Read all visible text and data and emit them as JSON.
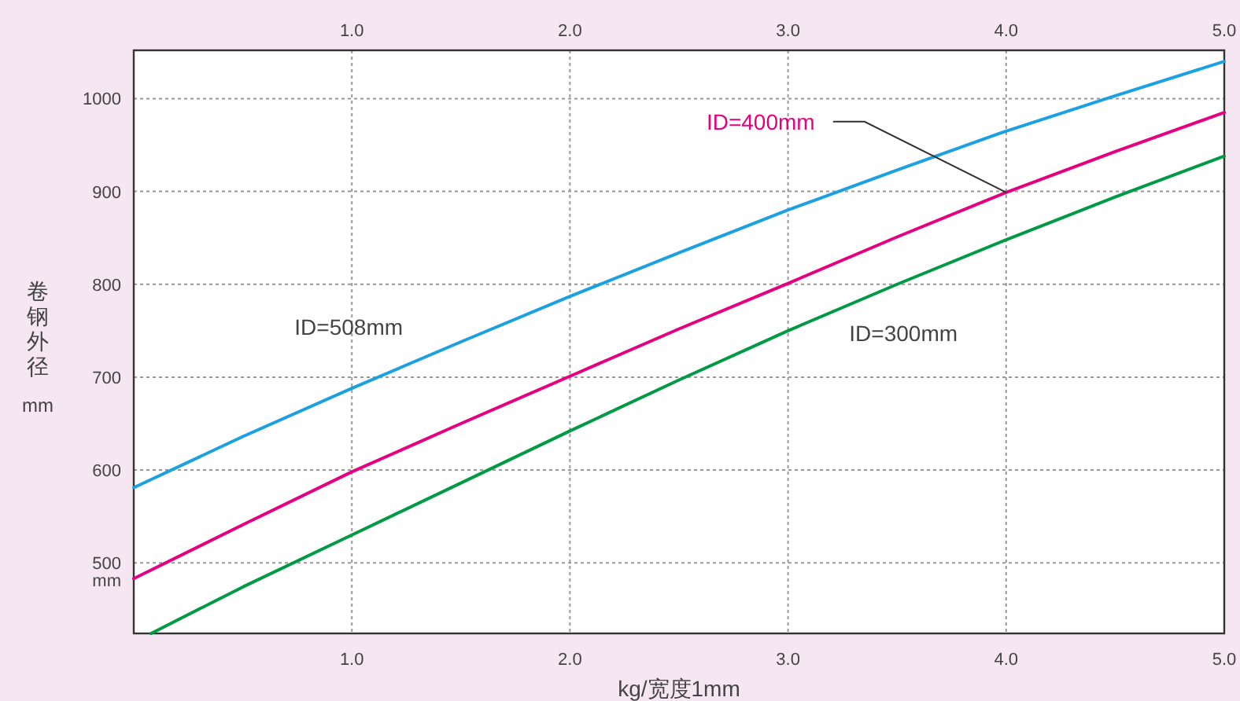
{
  "chart_data": {
    "type": "line",
    "xlabel": "kg/宽度1mm",
    "ylabel": "卷钢外径 mm",
    "x": [
      0,
      0.5,
      1,
      1.5,
      2,
      2.5,
      3,
      3.5,
      4,
      4.5,
      5
    ],
    "xlim": [
      0,
      5
    ],
    "xticks": [
      {
        "value": 1,
        "label": "1.0"
      },
      {
        "value": 2,
        "label": "2.0"
      },
      {
        "value": 3,
        "label": "3.0"
      },
      {
        "value": 4,
        "label": "4.0"
      },
      {
        "value": 5,
        "label": "5.0"
      }
    ],
    "x2lim": [
      0,
      5
    ],
    "x2ticks": [
      {
        "value": 1,
        "label": "1.0"
      },
      {
        "value": 2,
        "label": "2.0"
      },
      {
        "value": 3,
        "label": "3.0"
      },
      {
        "value": 4,
        "label": "4.0"
      },
      {
        "value": 5,
        "label": "5.0"
      }
    ],
    "ylim": [
      424,
      1052
    ],
    "yticks": [
      {
        "value": 500,
        "label": "500\nmm"
      },
      600,
      700,
      800,
      900,
      1000
    ],
    "grid": true,
    "marker": "none",
    "line_style": "solid",
    "series": [
      {
        "name": "ID=508mm",
        "color": "#1ba1e2",
        "values": [
          581,
          636,
          688,
          738,
          787,
          834,
          880,
          923,
          965,
          1003,
          1040
        ]
      },
      {
        "name": "ID=400mm",
        "color": "#e4007f",
        "values": [
          483,
          541,
          598,
          650,
          701,
          752,
          801,
          851,
          899,
          943,
          985
        ]
      },
      {
        "name": "ID=300mm",
        "color": "#009a44",
        "x": [
          0.08,
          0.5,
          1,
          1.5,
          2,
          2.5,
          3,
          3.5,
          4,
          4.5,
          5
        ],
        "values": [
          424,
          474,
          530,
          586,
          642,
          697,
          750,
          800,
          848,
          894,
          938
        ]
      }
    ]
  }
}
